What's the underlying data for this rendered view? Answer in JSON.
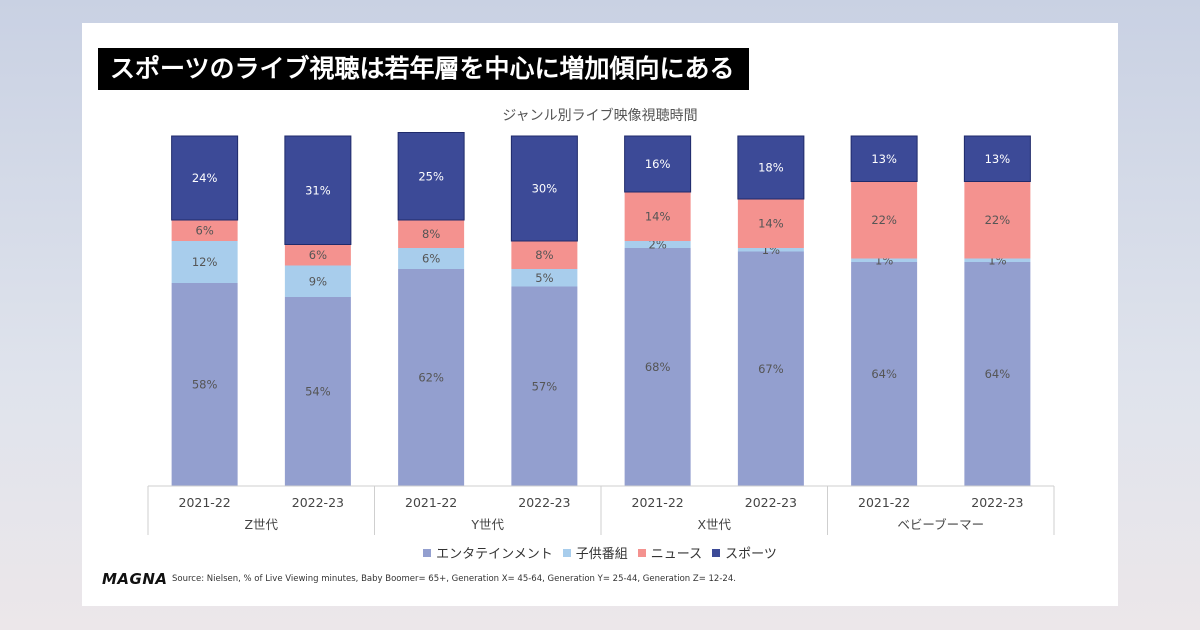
{
  "headline": "スポーツのライブ視聴は若年層を中心に増加傾向にある",
  "logo": "MAGNA",
  "source": "Source: Nielsen, % of Live Viewing minutes, Baby Boomer= 65+, Generation X= 45-64, Generation Y= 25-44, Generation Z= 12-24.",
  "colors": {
    "entertainment": "#939fcf",
    "kids": "#a8cdec",
    "news": "#f4928f",
    "sports": "#3c4a97"
  },
  "chart_data": {
    "type": "bar",
    "stacked": true,
    "title": "ジャンル別ライブ映像視聴時間",
    "groups": [
      {
        "label": "Z世代",
        "categories": [
          "2021-22",
          "2022-23"
        ]
      },
      {
        "label": "Y世代",
        "categories": [
          "2021-22",
          "2022-23"
        ]
      },
      {
        "label": "X世代",
        "categories": [
          "2021-22",
          "2022-23"
        ]
      },
      {
        "label": "ベビーブーマー",
        "categories": [
          "2021-22",
          "2022-23"
        ]
      }
    ],
    "categories": [
      "2021-22",
      "2022-23",
      "2021-22",
      "2022-23",
      "2021-22",
      "2022-23",
      "2021-22",
      "2022-23"
    ],
    "series": [
      {
        "name": "エンタテインメント",
        "color_key": "entertainment",
        "values": [
          58,
          54,
          62,
          57,
          68,
          67,
          64,
          64
        ]
      },
      {
        "name": "子供番組",
        "color_key": "kids",
        "values": [
          12,
          9,
          6,
          5,
          2,
          1,
          1,
          1
        ]
      },
      {
        "name": "ニュース",
        "color_key": "news",
        "values": [
          6,
          6,
          8,
          8,
          14,
          14,
          22,
          22
        ]
      },
      {
        "name": "スポーツ",
        "color_key": "sports",
        "values": [
          24,
          31,
          25,
          30,
          16,
          18,
          13,
          13
        ]
      }
    ],
    "value_suffix": "%",
    "ylim": [
      0,
      100
    ],
    "legend_position": "bottom",
    "grid": false
  }
}
